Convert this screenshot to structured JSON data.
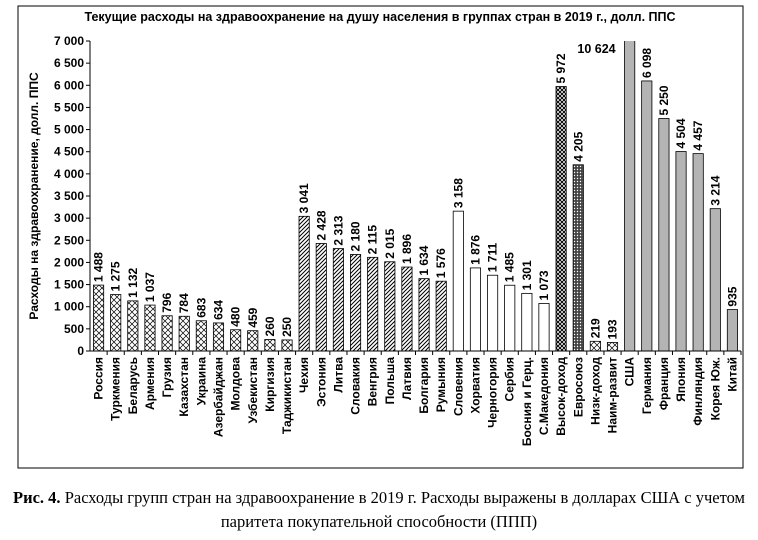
{
  "chart_data": {
    "type": "bar",
    "title": "Текущие расходы на здравоохранение на душу населения в группах стран в 2019 г., долл. ППС",
    "y_label": "Расходы на здравоохранение, долл. ППС",
    "categories": [
      "Россия",
      "Туркмения",
      "Беларусь",
      "Армения",
      "Грузия",
      "Казахстан",
      "Украина",
      "Азербайджан",
      "Молдова",
      "Узбекистан",
      "Киргизия",
      "Таджикистан",
      "Чехия",
      "Эстония",
      "Литва",
      "Словакия",
      "Венгрия",
      "Польша",
      "Латвия",
      "Болгария",
      "Румыния",
      "Словения",
      "Хорватия",
      "Черногория",
      "Сербия",
      "Босния и Герц.",
      "С.Македония",
      "Высок-доход",
      "Евросоюз",
      "Низк-доход",
      "Наим-развит",
      "США",
      "Германия",
      "Франция",
      "Япония",
      "Финляндия",
      "Корея Юж.",
      "Китай"
    ],
    "values": [
      1488,
      1275,
      1132,
      1037,
      796,
      784,
      683,
      634,
      480,
      459,
      260,
      250,
      3041,
      2428,
      2313,
      2180,
      2115,
      2015,
      1896,
      1634,
      1576,
      3158,
      1876,
      1711,
      1485,
      1301,
      1073,
      5972,
      4205,
      219,
      193,
      10624,
      6098,
      5250,
      4504,
      4457,
      3214,
      935
    ],
    "value_labels": [
      "1 488",
      "1 275",
      "1 132",
      "1 037",
      "796",
      "784",
      "683",
      "634",
      "480",
      "459",
      "260",
      "250",
      "3 041",
      "2 428",
      "2 313",
      "2 180",
      "2 115",
      "2 015",
      "1 896",
      "1 634",
      "1 576",
      "3 158",
      "1 876",
      "1 711",
      "1 485",
      "1 301",
      "1 073",
      "5 972",
      "4 205",
      "219",
      "193",
      "10 624",
      "6 098",
      "5 250",
      "4 504",
      "4 457",
      "3 214",
      "935"
    ],
    "styles": [
      "crosshatch",
      "crosshatch",
      "crosshatch",
      "crosshatch",
      "crosshatch",
      "crosshatch",
      "crosshatch",
      "crosshatch",
      "crosshatch",
      "crosshatch",
      "crosshatch",
      "crosshatch",
      "hatch",
      "hatch",
      "hatch",
      "hatch",
      "hatch",
      "hatch",
      "hatch",
      "hatch",
      "hatch",
      "white",
      "white",
      "white",
      "white",
      "white",
      "white",
      "dense-cross",
      "dots",
      "crosshatch",
      "crosshatch",
      "gray",
      "gray",
      "gray",
      "gray",
      "gray",
      "gray",
      "gray"
    ],
    "ylim": [
      0,
      7000
    ],
    "yticks": [
      0,
      {
        "value": 500,
        "label": "500"
      },
      {
        "value": 1000,
        "label": "1 000"
      },
      {
        "value": 1500,
        "label": "1 500"
      },
      {
        "value": 2000,
        "label": "2 000"
      },
      {
        "value": 2500,
        "label": "2 500"
      },
      {
        "value": 3000,
        "label": "3 000"
      },
      {
        "value": 3500,
        "label": "3 500"
      },
      {
        "value": 4000,
        "label": "4 000"
      },
      {
        "value": 4500,
        "label": "4 500"
      },
      {
        "value": 5000,
        "label": "5 000"
      },
      {
        "value": 5500,
        "label": "5 500"
      },
      {
        "value": 6000,
        "label": "6 000"
      },
      {
        "value": 6500,
        "label": "6 500"
      },
      {
        "value": 7000,
        "label": "7 000"
      }
    ]
  },
  "caption": {
    "label": "Рис. 4.",
    "text": "Расходы групп стран на здравоохранение в 2019 г. Расходы выражены в долларах США с учетом паритета покупательной способности (ППП)"
  }
}
